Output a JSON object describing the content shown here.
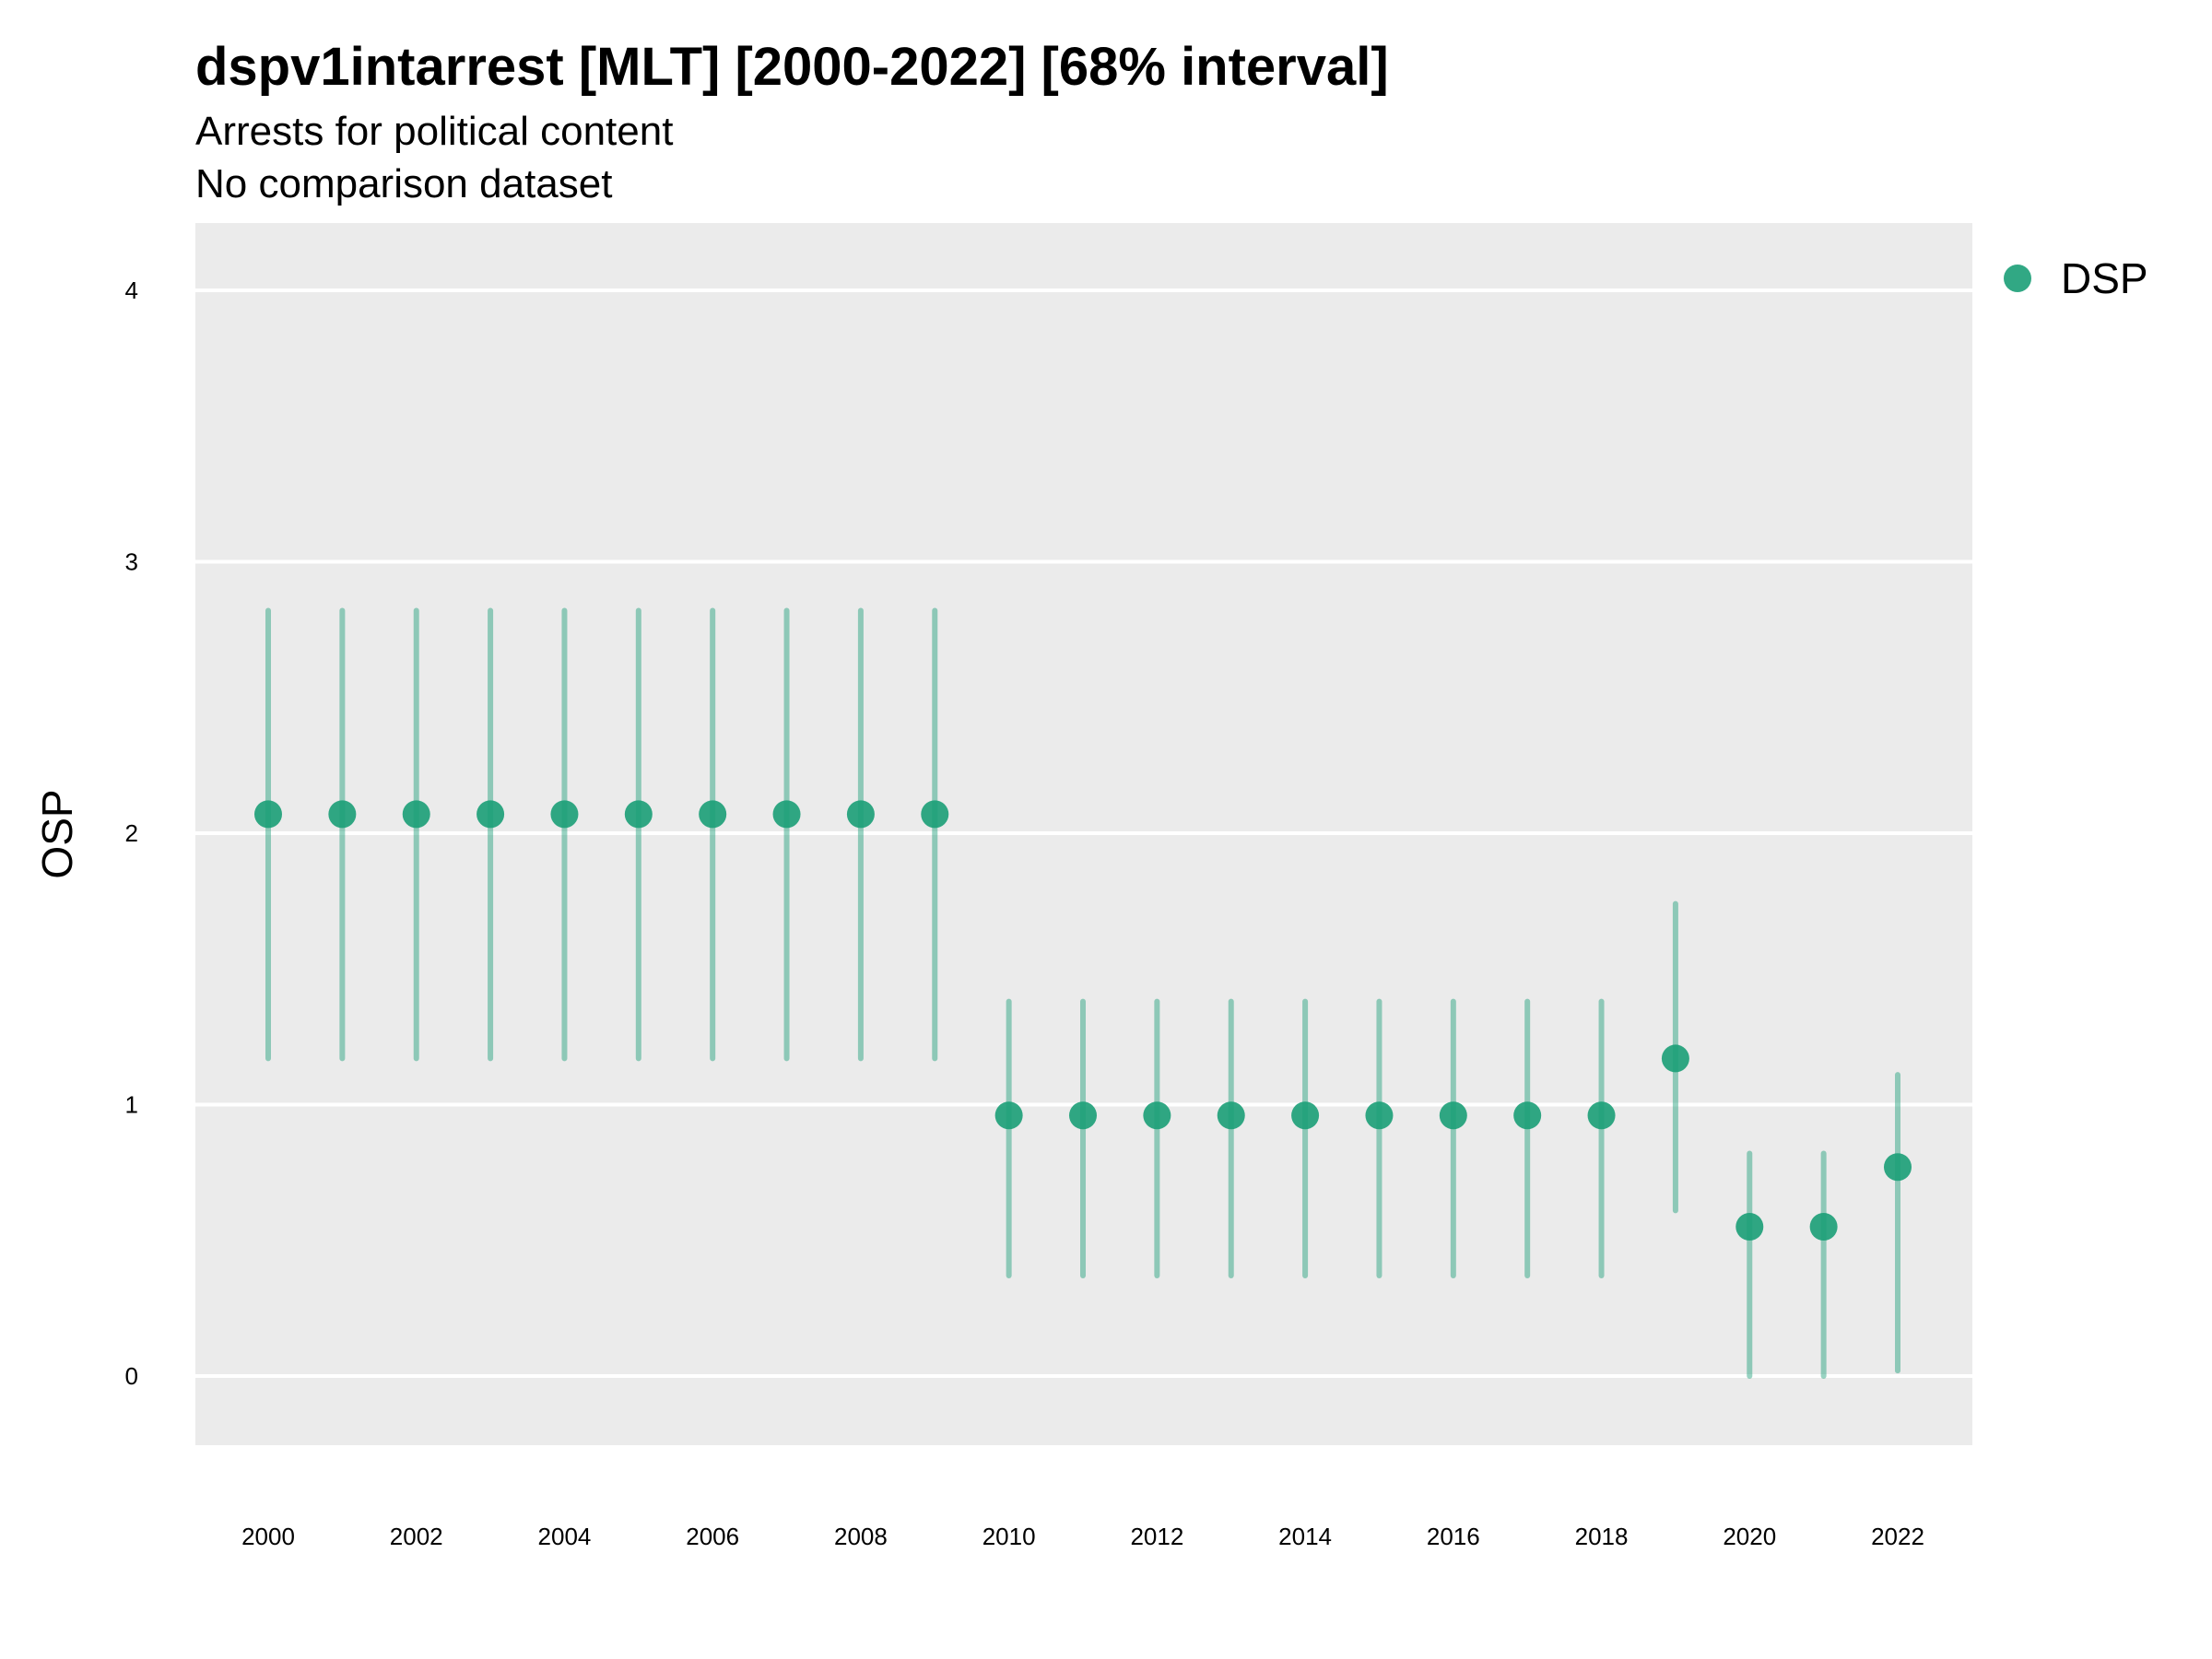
{
  "chart_data": {
    "type": "scatter",
    "title": "dspv1intarrest [MLT] [2000-2022] [68% interval]",
    "subtitle": "Arrests for political content",
    "subtitle2": "No comparison dataset",
    "xlabel": "",
    "ylabel": "OSP",
    "ylim": [
      -0.25,
      4.25
    ],
    "xlim": [
      1999,
      2023
    ],
    "y_ticks": [
      0,
      1,
      2,
      3,
      4
    ],
    "x_ticks": [
      2000,
      2002,
      2004,
      2006,
      2008,
      2010,
      2012,
      2014,
      2016,
      2018,
      2020,
      2022
    ],
    "grid": true,
    "legend_position": "right-top",
    "series": [
      {
        "name": "DSP",
        "color": "#1b9e77",
        "x": [
          2000,
          2001,
          2002,
          2003,
          2004,
          2005,
          2006,
          2007,
          2008,
          2009,
          2010,
          2011,
          2012,
          2013,
          2014,
          2015,
          2016,
          2017,
          2018,
          2019,
          2020,
          2021,
          2022
        ],
        "y": [
          2.07,
          2.07,
          2.07,
          2.07,
          2.07,
          2.07,
          2.07,
          2.07,
          2.07,
          2.07,
          0.96,
          0.96,
          0.96,
          0.96,
          0.96,
          0.96,
          0.96,
          0.96,
          0.96,
          1.17,
          0.55,
          0.55,
          0.77
        ],
        "lower": [
          1.17,
          1.17,
          1.17,
          1.17,
          1.17,
          1.17,
          1.17,
          1.17,
          1.17,
          1.17,
          0.37,
          0.37,
          0.37,
          0.37,
          0.37,
          0.37,
          0.37,
          0.37,
          0.37,
          0.61,
          0.0,
          0.0,
          0.02
        ],
        "upper": [
          2.82,
          2.82,
          2.82,
          2.82,
          2.82,
          2.82,
          2.82,
          2.82,
          2.82,
          2.82,
          1.38,
          1.38,
          1.38,
          1.38,
          1.38,
          1.38,
          1.38,
          1.38,
          1.38,
          1.74,
          0.82,
          0.82,
          1.11
        ]
      }
    ]
  },
  "colors": {
    "panel_bg": "#ebebeb",
    "grid": "#ffffff",
    "point": "#1b9e77"
  }
}
